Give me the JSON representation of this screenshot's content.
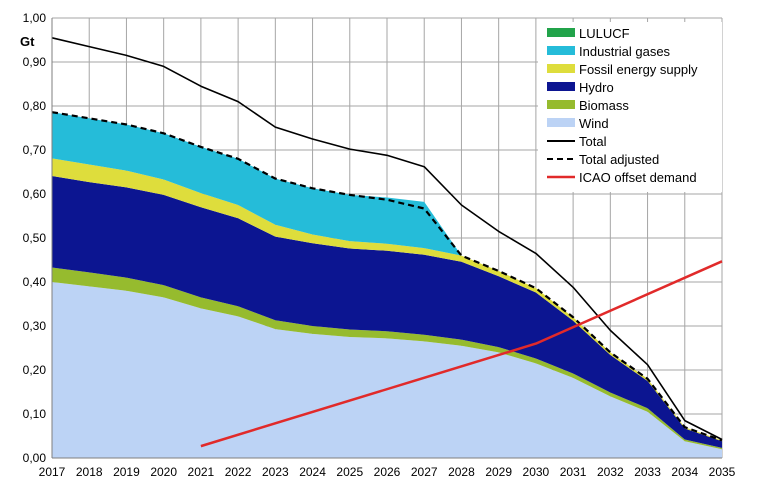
{
  "chart_data": {
    "type": "area",
    "unit": "Gt",
    "ylim": [
      0,
      1.0
    ],
    "y_ticks": [
      "0,00",
      "0,10",
      "0,20",
      "0,30",
      "0,40",
      "0,50",
      "0,60",
      "0,70",
      "0,80",
      "0,90",
      "1,00"
    ],
    "x": [
      "2017",
      "2018",
      "2019",
      "2020",
      "2021",
      "2022",
      "2023",
      "2024",
      "2025",
      "2026",
      "2027",
      "2028",
      "2029",
      "2030",
      "2031",
      "2032",
      "2033",
      "2034",
      "2035"
    ],
    "grid": true,
    "legend_position": "top-right",
    "stack_order": [
      "Wind",
      "Biomass",
      "Hydro",
      "Fossil energy supply",
      "Industrial gases",
      "LULUCF"
    ],
    "series": [
      {
        "name": "LULUCF",
        "kind": "area",
        "color": "#21a34a",
        "values": [
          0,
          0,
          0,
          0,
          0,
          0,
          0,
          0,
          0,
          0,
          0,
          0,
          0,
          0,
          0,
          0,
          0,
          0,
          0
        ]
      },
      {
        "name": "Industrial gases",
        "kind": "area",
        "color": "#25bcd9",
        "values": [
          0.105,
          0.105,
          0.105,
          0.105,
          0.105,
          0.105,
          0.105,
          0.105,
          0.105,
          0.105,
          0.105,
          0,
          0,
          0,
          0,
          0,
          0,
          0,
          0
        ]
      },
      {
        "name": "Fossil energy supply",
        "kind": "area",
        "color": "#dedd3c",
        "values": [
          0.04,
          0.04,
          0.038,
          0.035,
          0.032,
          0.03,
          0.027,
          0.02,
          0.017,
          0.016,
          0.015,
          0.014,
          0.012,
          0.01,
          0.008,
          0.006,
          0.005,
          0.003,
          0.002
        ]
      },
      {
        "name": "Hydro",
        "kind": "area",
        "color": "#0c1591",
        "values": [
          0.208,
          0.205,
          0.205,
          0.205,
          0.205,
          0.2,
          0.19,
          0.188,
          0.184,
          0.183,
          0.182,
          0.177,
          0.161,
          0.15,
          0.12,
          0.085,
          0.062,
          0.025,
          0.015
        ]
      },
      {
        "name": "Biomass",
        "kind": "area",
        "color": "#96bb2e",
        "values": [
          0.033,
          0.032,
          0.03,
          0.028,
          0.025,
          0.023,
          0.02,
          0.018,
          0.017,
          0.016,
          0.015,
          0.014,
          0.012,
          0.011,
          0.01,
          0.009,
          0.008,
          0.004,
          0.003
        ]
      },
      {
        "name": "Wind",
        "kind": "area",
        "color": "#bcd3f5",
        "values": [
          0.4,
          0.39,
          0.38,
          0.365,
          0.34,
          0.322,
          0.293,
          0.282,
          0.275,
          0.272,
          0.265,
          0.255,
          0.24,
          0.215,
          0.182,
          0.14,
          0.105,
          0.038,
          0.02
        ]
      },
      {
        "name": "Total",
        "kind": "line",
        "color": "#000000",
        "dash": false,
        "values": [
          0.955,
          0.935,
          0.915,
          0.89,
          0.845,
          0.81,
          0.752,
          0.725,
          0.702,
          0.688,
          0.662,
          0.575,
          0.515,
          0.465,
          0.388,
          0.29,
          0.212,
          0.085,
          0.042
        ]
      },
      {
        "name": "Total adjusted",
        "kind": "line",
        "color": "#000000",
        "dash": true,
        "values": [
          0.786,
          0.772,
          0.758,
          0.738,
          0.707,
          0.68,
          0.635,
          0.613,
          0.598,
          0.587,
          0.567,
          0.46,
          0.425,
          0.386,
          0.32,
          0.24,
          0.18,
          0.07,
          0.04
        ]
      },
      {
        "name": "ICAO offset demand",
        "kind": "line",
        "color": "#e12a2a",
        "dash": false,
        "points": [
          [
            "2021",
            0.027
          ],
          [
            "2030",
            0.26
          ],
          [
            "2035",
            0.447
          ]
        ]
      }
    ]
  }
}
